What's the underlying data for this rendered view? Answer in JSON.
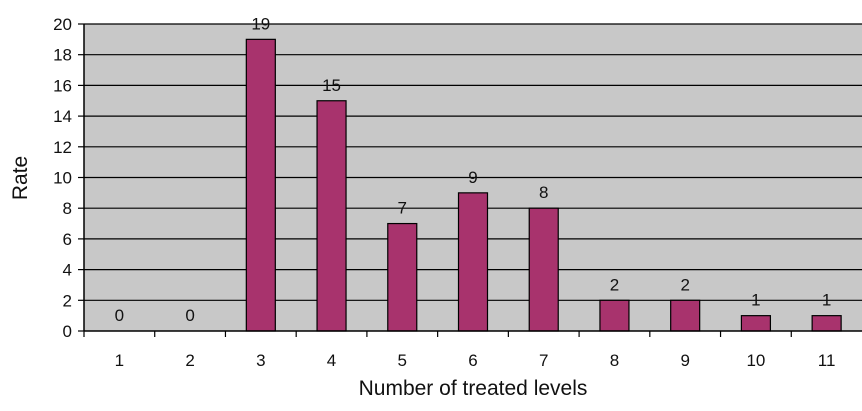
{
  "chart_data": {
    "type": "bar",
    "title": "",
    "xlabel": "Number of treated levels",
    "ylabel": "Rate",
    "categories": [
      "1",
      "2",
      "3",
      "4",
      "5",
      "6",
      "7",
      "8",
      "9",
      "10",
      "11"
    ],
    "values": [
      0,
      0,
      19,
      15,
      7,
      9,
      8,
      2,
      2,
      1,
      1
    ],
    "ylim": [
      0,
      20
    ],
    "yticks": [
      "0",
      "2",
      "4",
      "6",
      "8",
      "10",
      "12",
      "14",
      "16",
      "18",
      "20"
    ],
    "grid": true,
    "legend": "none",
    "colors": {
      "bar": "#a8336d",
      "plot_background": "#c8c8c8",
      "gridline": "#000000"
    }
  }
}
